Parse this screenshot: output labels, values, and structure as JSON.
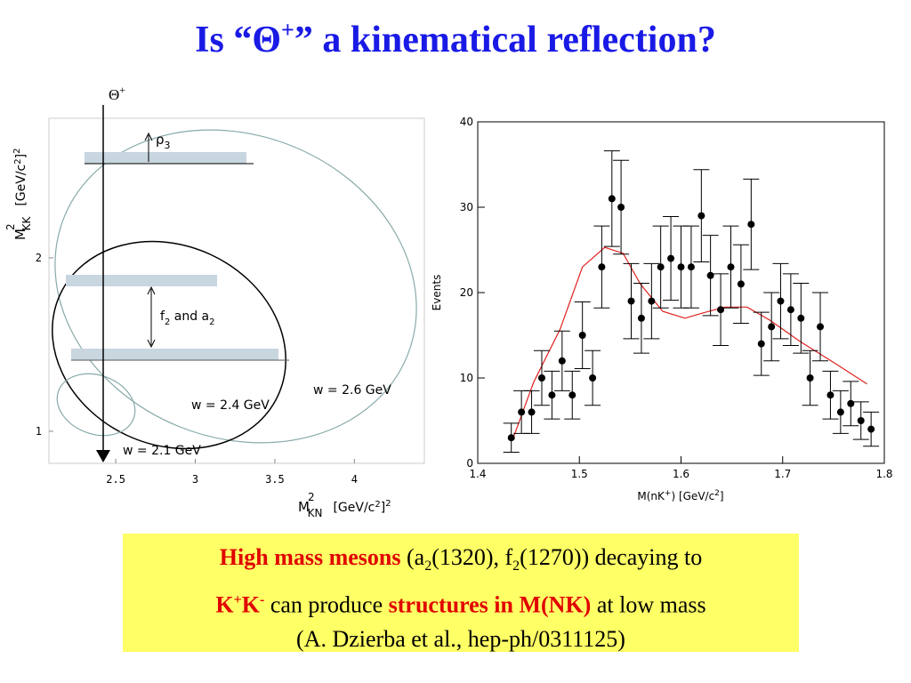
{
  "title": [
    "Is “Θ",
    "+",
    "” a kinematical reflection?"
  ],
  "chart_data": [
    {
      "type": "diagram",
      "xlim": [
        2.08,
        4.44
      ],
      "ylim": [
        0.815,
        2.805
      ],
      "xticks": [
        2.5,
        3,
        3.5,
        4
      ],
      "yticks": [
        1,
        2
      ],
      "x_label": [
        "M",
        "2",
        "KN",
        "[GeV/c",
        "2",
        "]",
        "2"
      ],
      "y_label": [
        "M",
        "2",
        "KK",
        "[GeV/c",
        "2",
        "]",
        "2"
      ],
      "annotations": {
        "theta": [
          "Θ",
          "+"
        ],
        "rho": [
          "ρ",
          "3"
        ],
        "f2a2": [
          "f",
          "2",
          " and a",
          "2"
        ],
        "w26": "w = 2.6 GeV",
        "w24": "w = 2.4 GeV",
        "w21": "w = 2.1 GeV"
      }
    },
    {
      "type": "scatter",
      "xlim": [
        1.4,
        1.8
      ],
      "ylim": [
        0,
        40
      ],
      "xticks": [
        1.4,
        1.5,
        1.6,
        1.7,
        1.8
      ],
      "yticks": [
        0,
        10,
        20,
        30,
        40
      ],
      "y_label": "Events",
      "x_label": [
        "M(nK",
        "+",
        ")  [GeV/c",
        "2",
        "]"
      ],
      "color": "#000000",
      "x": [
        1.433,
        1.443,
        1.453,
        1.463,
        1.473,
        1.483,
        1.493,
        1.503,
        1.513,
        1.522,
        1.532,
        1.541,
        1.551,
        1.561,
        1.571,
        1.58,
        1.59,
        1.6,
        1.61,
        1.62,
        1.629,
        1.639,
        1.649,
        1.659,
        1.669,
        1.679,
        1.689,
        1.698,
        1.708,
        1.718,
        1.727,
        1.737,
        1.747,
        1.757,
        1.767,
        1.777,
        1.787
      ],
      "values": [
        3,
        6,
        6,
        10,
        8,
        12,
        8,
        15,
        10,
        23,
        31,
        30,
        19,
        17,
        19,
        23,
        24,
        23,
        23,
        29,
        22,
        18,
        23,
        21,
        28,
        14,
        16,
        19,
        18,
        17,
        10,
        16,
        8,
        6,
        7,
        5,
        4
      ],
      "errors": [
        1.7,
        2.5,
        2.5,
        3.2,
        2.8,
        3.5,
        2.8,
        3.9,
        3.2,
        4.8,
        5.6,
        5.5,
        4.4,
        4.1,
        4.4,
        4.8,
        4.9,
        4.8,
        4.8,
        5.4,
        4.7,
        4.2,
        4.8,
        4.6,
        5.3,
        3.7,
        4,
        4.4,
        4.2,
        4.1,
        3.2,
        4,
        2.8,
        2.5,
        2.6,
        2.2,
        2
      ],
      "fit": {
        "color": "#e02020",
        "x": [
          1.435,
          1.455,
          1.481,
          1.503,
          1.525,
          1.543,
          1.56,
          1.582,
          1.604,
          1.621,
          1.643,
          1.665,
          1.687,
          1.718,
          1.753,
          1.783
        ],
        "values": [
          3,
          9.5,
          15.7,
          23,
          25.3,
          24.6,
          21,
          17.8,
          17,
          17.6,
          18.3,
          18.3,
          16.8,
          14.2,
          11.6,
          9.3
        ]
      }
    }
  ],
  "caption": [
    [
      {
        "text": "High mass mesons",
        "style": "red"
      },
      {
        "text": " (a",
        "style": "plain"
      },
      {
        "text": "2",
        "style": "sub"
      },
      {
        "text": "(1320), f",
        "style": "plain"
      },
      {
        "text": "2",
        "style": "sub"
      },
      {
        "text": "(1270)) decaying to",
        "style": "plain"
      }
    ],
    [
      {
        "text": "K",
        "style": "red"
      },
      {
        "text": "+",
        "style": "redsup"
      },
      {
        "text": "K",
        "style": "red"
      },
      {
        "text": "-",
        "style": "redsup"
      },
      {
        "text": " can produce ",
        "style": "plain"
      },
      {
        "text": "structures in M(NK)",
        "style": "red"
      },
      {
        "text": " at low mass",
        "style": "plain"
      }
    ],
    [
      {
        "text": "(A. Dzierba et al., hep-ph/0311125)",
        "style": "plain"
      }
    ]
  ]
}
